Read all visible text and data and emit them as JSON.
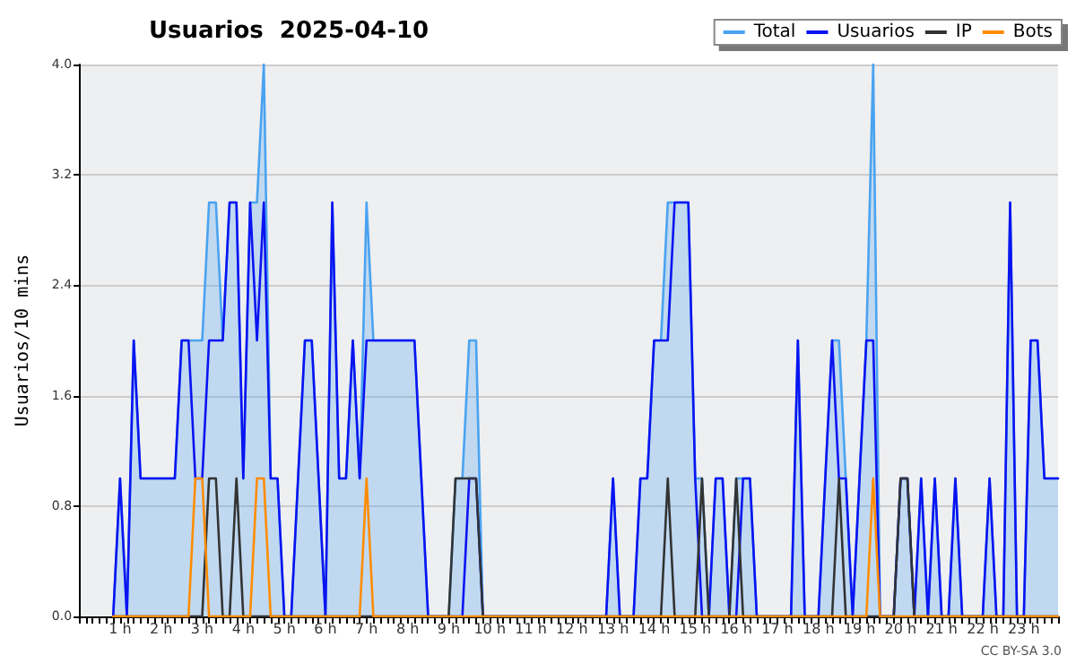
{
  "chart_data": {
    "type": "line",
    "title": "Usuarios  2025-04-10",
    "ylabel": "Usuarios/10 mins",
    "annotations": [
      "CC BY-SA 3.0"
    ],
    "categories": [
      null,
      null,
      null,
      null,
      null,
      null,
      "1 h",
      null,
      null,
      null,
      null,
      null,
      "2 h",
      null,
      null,
      null,
      null,
      null,
      "3 h",
      null,
      null,
      null,
      null,
      null,
      "4 h",
      null,
      null,
      null,
      null,
      null,
      "5 h",
      null,
      null,
      null,
      null,
      null,
      "6 h",
      null,
      null,
      null,
      null,
      null,
      "7 h",
      null,
      null,
      null,
      null,
      null,
      "8 h",
      null,
      null,
      null,
      null,
      null,
      "9 h",
      null,
      null,
      null,
      null,
      null,
      "10 h",
      null,
      null,
      null,
      null,
      null,
      "11 h",
      null,
      null,
      null,
      null,
      null,
      "12 h",
      null,
      null,
      null,
      null,
      null,
      "13 h",
      null,
      null,
      null,
      null,
      null,
      "14 h",
      null,
      null,
      null,
      null,
      null,
      "15 h",
      null,
      null,
      null,
      null,
      null,
      "16 h",
      null,
      null,
      null,
      null,
      null,
      "17 h",
      null,
      null,
      null,
      null,
      null,
      "18 h",
      null,
      null,
      null,
      null,
      null,
      "19 h",
      null,
      null,
      null,
      null,
      null,
      "20 h",
      null,
      null,
      null,
      null,
      null,
      "21 h",
      null,
      null,
      null,
      null,
      null,
      "22 h",
      null,
      null,
      null,
      null,
      null,
      "23 h",
      null,
      null,
      null,
      null,
      null
    ],
    "series": [
      {
        "name": "Total",
        "type": "area",
        "color": "#4aa3f0",
        "values": [
          null,
          null,
          null,
          null,
          null,
          0,
          1,
          0,
          2,
          1,
          1,
          1,
          1,
          1,
          1,
          2,
          2,
          2,
          2,
          3,
          3,
          2,
          3,
          3,
          1,
          3,
          3,
          4,
          1,
          1,
          0,
          0,
          1,
          2,
          2,
          1,
          0,
          3,
          1,
          1,
          2,
          1,
          3,
          2,
          2,
          2,
          2,
          2,
          2,
          2,
          1,
          0,
          0,
          0,
          0,
          1,
          1,
          2,
          2,
          0,
          0,
          0,
          0,
          0,
          0,
          0,
          0,
          0,
          0,
          0,
          0,
          0,
          0,
          0,
          0,
          0,
          0,
          0,
          1,
          0,
          0,
          0,
          1,
          1,
          2,
          2,
          3,
          3,
          3,
          3,
          1,
          1,
          0,
          1,
          1,
          0,
          1,
          1,
          1,
          0,
          0,
          0,
          0,
          0,
          0,
          2,
          0,
          0,
          0,
          1,
          2,
          2,
          1,
          0,
          1,
          2,
          4,
          0,
          0,
          0,
          1,
          1,
          0,
          1,
          0,
          1,
          0,
          0,
          1,
          0,
          0,
          0,
          0,
          1,
          0,
          0,
          3,
          0,
          0,
          2,
          2,
          1,
          1,
          1
        ]
      },
      {
        "name": "Usuarios",
        "color": "#0a14f0",
        "values": [
          null,
          null,
          null,
          null,
          null,
          0,
          1,
          0,
          2,
          1,
          1,
          1,
          1,
          1,
          1,
          2,
          2,
          1,
          1,
          2,
          2,
          2,
          3,
          3,
          1,
          3,
          2,
          3,
          1,
          1,
          0,
          0,
          1,
          2,
          2,
          1,
          0,
          3,
          1,
          1,
          2,
          1,
          2,
          2,
          2,
          2,
          2,
          2,
          2,
          2,
          1,
          0,
          0,
          0,
          0,
          0,
          0,
          1,
          1,
          0,
          0,
          0,
          0,
          0,
          0,
          0,
          0,
          0,
          0,
          0,
          0,
          0,
          0,
          0,
          0,
          0,
          0,
          0,
          1,
          0,
          0,
          0,
          1,
          1,
          2,
          2,
          2,
          3,
          3,
          3,
          1,
          0,
          0,
          1,
          1,
          0,
          0,
          1,
          1,
          0,
          0,
          0,
          0,
          0,
          0,
          2,
          0,
          0,
          0,
          1,
          2,
          1,
          1,
          0,
          1,
          2,
          2,
          0,
          0,
          0,
          1,
          1,
          0,
          1,
          0,
          1,
          0,
          0,
          1,
          0,
          0,
          0,
          0,
          1,
          0,
          0,
          3,
          0,
          0,
          2,
          2,
          1,
          1,
          1
        ]
      },
      {
        "name": "IP",
        "color": "#333333",
        "values": [
          null,
          null,
          null,
          null,
          null,
          0,
          0,
          0,
          0,
          0,
          0,
          0,
          0,
          0,
          0,
          0,
          0,
          0,
          0,
          1,
          1,
          0,
          0,
          1,
          0,
          0,
          0,
          0,
          0,
          0,
          0,
          0,
          0,
          0,
          0,
          0,
          0,
          0,
          0,
          0,
          0,
          0,
          0,
          0,
          0,
          0,
          0,
          0,
          0,
          0,
          0,
          0,
          0,
          0,
          0,
          1,
          1,
          1,
          1,
          0,
          0,
          0,
          0,
          0,
          0,
          0,
          0,
          0,
          0,
          0,
          0,
          0,
          0,
          0,
          0,
          0,
          0,
          0,
          0,
          0,
          0,
          0,
          0,
          0,
          0,
          0,
          1,
          0,
          0,
          0,
          0,
          1,
          0,
          0,
          0,
          0,
          1,
          0,
          0,
          0,
          0,
          0,
          0,
          0,
          0,
          0,
          0,
          0,
          0,
          0,
          0,
          1,
          0,
          0,
          0,
          0,
          0,
          0,
          0,
          0,
          1,
          1,
          0,
          0,
          0,
          0,
          0,
          0,
          0,
          0,
          0,
          0,
          0,
          0,
          0,
          0,
          0,
          0,
          0,
          0,
          0,
          0,
          0,
          0
        ]
      },
      {
        "name": "Bots",
        "color": "#ff8c00",
        "values": [
          null,
          null,
          null,
          null,
          null,
          0,
          0,
          0,
          0,
          0,
          0,
          0,
          0,
          0,
          0,
          0,
          0,
          1,
          1,
          0,
          0,
          0,
          0,
          0,
          0,
          0,
          1,
          1,
          0,
          0,
          0,
          0,
          0,
          0,
          0,
          0,
          0,
          0,
          0,
          0,
          0,
          0,
          1,
          0,
          0,
          0,
          0,
          0,
          0,
          0,
          0,
          0,
          0,
          0,
          0,
          0,
          0,
          0,
          0,
          0,
          0,
          0,
          0,
          0,
          0,
          0,
          0,
          0,
          0,
          0,
          0,
          0,
          0,
          0,
          0,
          0,
          0,
          0,
          0,
          0,
          0,
          0,
          0,
          0,
          0,
          0,
          0,
          0,
          0,
          0,
          0,
          0,
          0,
          0,
          0,
          0,
          0,
          0,
          0,
          0,
          0,
          0,
          0,
          0,
          0,
          0,
          0,
          0,
          0,
          0,
          0,
          0,
          0,
          0,
          0,
          0,
          1,
          0,
          0,
          0,
          0,
          0,
          0,
          0,
          0,
          0,
          0,
          0,
          0,
          0,
          0,
          0,
          0,
          0,
          0,
          0,
          0,
          0,
          0,
          0,
          0,
          0,
          0,
          0
        ]
      }
    ],
    "ylim": [
      0,
      4
    ],
    "yticks": [
      {
        "value": 0,
        "label": "0.0"
      },
      0.8,
      1.6,
      2.4,
      3.2,
      {
        "value": 4,
        "label": "4.0"
      }
    ],
    "grid": "y",
    "legend": "top right",
    "marker": "none",
    "line_style": "solid"
  }
}
